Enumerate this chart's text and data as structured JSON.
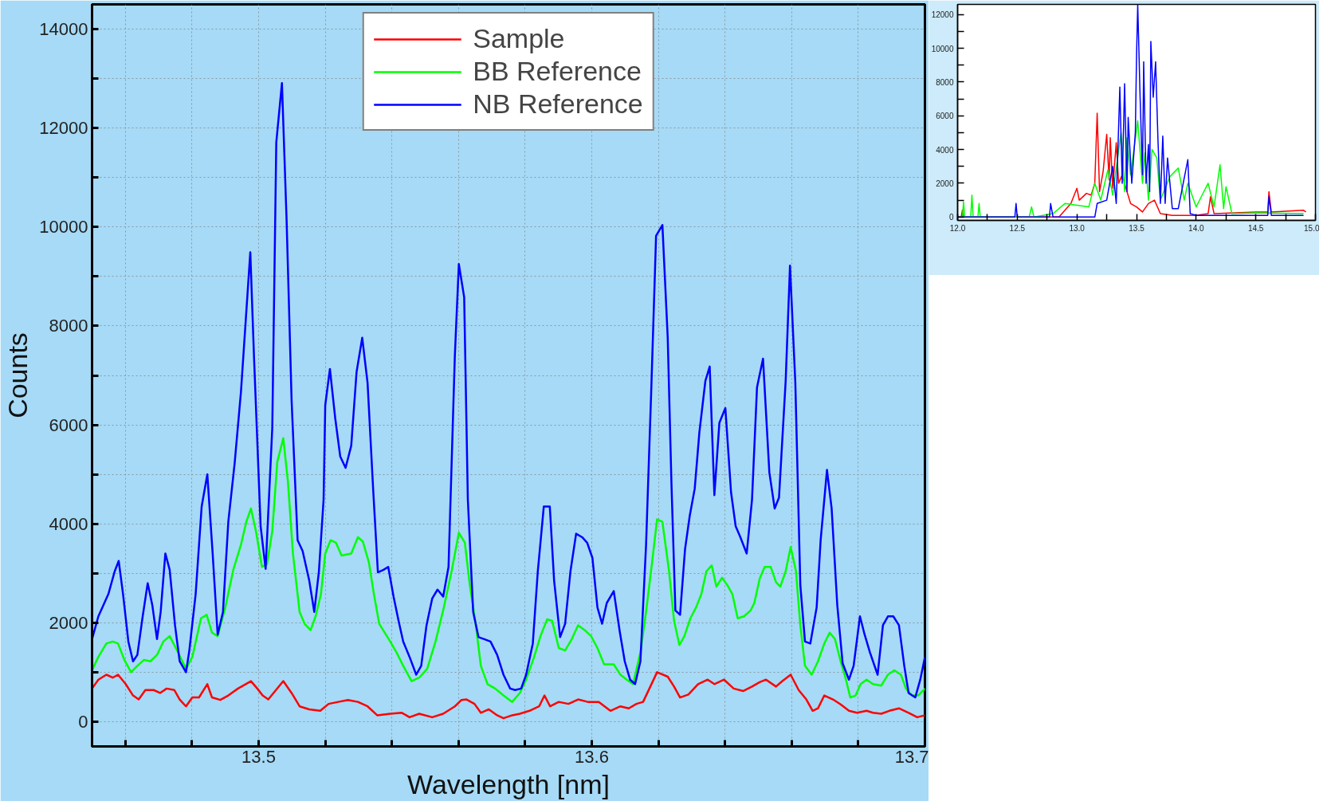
{
  "chart_data": [
    {
      "type": "line",
      "xlabel": "Wavelength [nm]",
      "ylabel": "Counts",
      "xlim": [
        13.45,
        13.7
      ],
      "ylim": [
        -500,
        14500
      ],
      "xticks": [
        {
          "value": 13.46,
          "label": null
        },
        {
          "value": 13.48,
          "label": null
        },
        13.5,
        {
          "value": 13.52,
          "label": null
        },
        {
          "value": 13.54,
          "label": null
        },
        {
          "value": 13.56,
          "label": null
        },
        {
          "value": 13.58,
          "label": null
        },
        13.6,
        {
          "value": 13.62,
          "label": null
        },
        {
          "value": 13.64,
          "label": null
        },
        {
          "value": 13.66,
          "label": null
        },
        {
          "value": 13.68,
          "label": null
        },
        13.7
      ],
      "yticks": [
        0,
        {
          "value": 1000,
          "label": null
        },
        2000,
        {
          "value": 3000,
          "label": null
        },
        4000,
        {
          "value": 5000,
          "label": null
        },
        6000,
        {
          "value": 7000,
          "label": null
        },
        8000,
        {
          "value": 9000,
          "label": null
        },
        10000,
        {
          "value": 11000,
          "label": null
        },
        12000,
        {
          "value": 13000,
          "label": null
        },
        14000
      ],
      "grid": true,
      "legend": "top",
      "series": [
        {
          "name": "Sample",
          "color": "#ff0000",
          "x": [
            13.45,
            13.4519,
            13.4543,
            13.4562,
            13.4578,
            13.4601,
            13.4623,
            13.464,
            13.466,
            13.4685,
            13.4704,
            13.4724,
            13.4747,
            13.4763,
            13.4782,
            13.4801,
            13.4821,
            13.4846,
            13.486,
            13.4885,
            13.4909,
            13.4938,
            13.4977,
            13.4996,
            13.5012,
            13.5029,
            13.5074,
            13.5099,
            13.5123,
            13.5152,
            13.5185,
            13.521,
            13.5239,
            13.5268,
            13.5298,
            13.5327,
            13.5356,
            13.5395,
            13.543,
            13.5453,
            13.5482,
            13.5521,
            13.5554,
            13.5589,
            13.5609,
            13.5624,
            13.5648,
            13.5667,
            13.5691,
            13.5716,
            13.5735,
            13.5761,
            13.5784,
            13.5813,
            13.5842,
            13.5858,
            13.5875,
            13.5901,
            13.593,
            13.5959,
            13.5988,
            13.6021,
            13.6056,
            13.6086,
            13.6111,
            13.6134,
            13.6154,
            13.6173,
            13.6196,
            13.6228,
            13.6247,
            13.6265,
            13.629,
            13.6319,
            13.6348,
            13.6368,
            13.6397,
            13.6426,
            13.6455,
            13.6481,
            13.6504,
            13.6523,
            13.6553,
            13.6572,
            13.6597,
            13.6621,
            13.6644,
            13.6663,
            13.6679,
            13.6698,
            13.6724,
            13.6747,
            13.6772,
            13.6796,
            13.6825,
            13.6844,
            13.6869,
            13.6893,
            13.6922,
            13.6951,
            13.6977,
            13.7
          ],
          "values": [
            670,
            850,
            950,
            890,
            950,
            760,
            530,
            450,
            640,
            640,
            580,
            670,
            640,
            450,
            310,
            490,
            490,
            760,
            490,
            440,
            530,
            670,
            820,
            670,
            530,
            450,
            820,
            580,
            310,
            250,
            220,
            360,
            400,
            440,
            400,
            310,
            130,
            160,
            180,
            90,
            160,
            90,
            160,
            310,
            440,
            450,
            360,
            180,
            250,
            130,
            70,
            130,
            160,
            220,
            310,
            530,
            310,
            400,
            360,
            450,
            400,
            400,
            220,
            310,
            270,
            360,
            400,
            670,
            1000,
            910,
            710,
            490,
            550,
            760,
            850,
            760,
            850,
            670,
            620,
            710,
            800,
            850,
            710,
            820,
            950,
            640,
            450,
            220,
            270,
            530,
            450,
            350,
            220,
            180,
            220,
            180,
            160,
            220,
            270,
            180,
            90,
            130
          ]
        },
        {
          "name": "BB Reference",
          "color": "#00ff00",
          "x": [
            13.45,
            13.4519,
            13.4543,
            13.4562,
            13.4578,
            13.4597,
            13.4617,
            13.4636,
            13.4656,
            13.4675,
            13.4695,
            13.4714,
            13.4733,
            13.4753,
            13.4782,
            13.4801,
            13.4827,
            13.4844,
            13.486,
            13.4877,
            13.49,
            13.4924,
            13.4947,
            13.4963,
            13.4977,
            13.4992,
            13.501,
            13.5025,
            13.5041,
            13.5056,
            13.5074,
            13.5088,
            13.5103,
            13.5123,
            13.5138,
            13.5156,
            13.5171,
            13.5187,
            13.52,
            13.5216,
            13.5232,
            13.5249,
            13.5278,
            13.5298,
            13.5313,
            13.5331,
            13.5346,
            13.5362,
            13.5395,
            13.5414,
            13.5434,
            13.5459,
            13.5482,
            13.5506,
            13.5531,
            13.5556,
            13.558,
            13.5601,
            13.5619,
            13.5634,
            13.5652,
            13.5667,
            13.5687,
            13.571,
            13.5735,
            13.5761,
            13.5784,
            13.5803,
            13.5827,
            13.5846,
            13.5866,
            13.5881,
            13.5901,
            13.592,
            13.594,
            13.5959,
            13.5979,
            13.5998,
            13.6017,
            13.6037,
            13.6066,
            13.6086,
            13.6105,
            13.6124,
            13.6146,
            13.6163,
            13.6181,
            13.6196,
            13.6212,
            13.6232,
            13.6247,
            13.6263,
            13.6278,
            13.6296,
            13.6313,
            13.6329,
            13.6344,
            13.636,
            13.6374,
            13.6391,
            13.6407,
            13.6422,
            13.6438,
            13.6457,
            13.6477,
            13.6488,
            13.6504,
            13.6519,
            13.6537,
            13.6553,
            13.6566,
            13.6582,
            13.6597,
            13.6613,
            13.6626,
            13.664,
            13.666,
            13.6679,
            13.6698,
            13.6714,
            13.673,
            13.6747,
            13.6763,
            13.6776,
            13.6792,
            13.6807,
            13.6825,
            13.6844,
            13.6869,
            13.6889,
            13.6908,
            13.6928,
            13.6943,
            13.6961,
            13.698,
            13.7
          ],
          "values": [
            1040,
            1310,
            1580,
            1620,
            1580,
            1250,
            1000,
            1130,
            1250,
            1220,
            1350,
            1620,
            1730,
            1470,
            1070,
            1310,
            2090,
            2160,
            1800,
            1730,
            2310,
            3070,
            3580,
            4040,
            4310,
            3850,
            3130,
            3180,
            3850,
            5250,
            5730,
            4850,
            3400,
            2220,
            1980,
            1850,
            2130,
            2580,
            3400,
            3670,
            3620,
            3360,
            3400,
            3730,
            3640,
            3220,
            2580,
            1980,
            1620,
            1400,
            1130,
            820,
            890,
            1070,
            1620,
            2310,
            3070,
            3820,
            3620,
            2760,
            1950,
            1130,
            760,
            670,
            530,
            400,
            580,
            850,
            1310,
            1730,
            2070,
            2040,
            1490,
            1440,
            1670,
            1950,
            1850,
            1730,
            1490,
            1160,
            1160,
            950,
            850,
            760,
            1400,
            2220,
            3220,
            4090,
            4040,
            3040,
            2040,
            1550,
            1730,
            2090,
            2310,
            2580,
            3040,
            3160,
            2730,
            2910,
            2760,
            2580,
            2090,
            2130,
            2250,
            2400,
            2890,
            3130,
            3130,
            2820,
            2730,
            3040,
            3530,
            3040,
            1950,
            1130,
            950,
            1220,
            1580,
            1800,
            1670,
            1220,
            850,
            490,
            530,
            760,
            850,
            760,
            730,
            950,
            1040,
            950,
            670,
            530,
            530,
            670
          ]
        },
        {
          "name": "NB Reference",
          "color": "#0000ff",
          "x": [
            13.45,
            13.4519,
            13.4549,
            13.4568,
            13.458,
            13.4593,
            13.4609,
            13.4623,
            13.4636,
            13.4652,
            13.4667,
            13.4681,
            13.4695,
            13.4706,
            13.472,
            13.4733,
            13.4749,
            13.4763,
            13.4782,
            13.4792,
            13.4811,
            13.4829,
            13.4846,
            13.4862,
            13.4877,
            13.4893,
            13.4909,
            13.4928,
            13.4947,
            13.4975,
            13.4986,
            13.5006,
            13.5021,
            13.5041,
            13.5053,
            13.507,
            13.5084,
            13.5099,
            13.5117,
            13.5132,
            13.5152,
            13.5167,
            13.5181,
            13.5195,
            13.52,
            13.5214,
            13.523,
            13.5245,
            13.5261,
            13.5278,
            13.5294,
            13.5311,
            13.5327,
            13.5344,
            13.5358,
            13.5375,
            13.5389,
            13.5405,
            13.542,
            13.5434,
            13.5453,
            13.5473,
            13.5488,
            13.5504,
            13.5521,
            13.5537,
            13.5554,
            13.557,
            13.5589,
            13.5601,
            13.5617,
            13.5628,
            13.5644,
            13.566,
            13.5677,
            13.5696,
            13.5716,
            13.5735,
            13.5755,
            13.577,
            13.5788,
            13.5803,
            13.5823,
            13.5838,
            13.5856,
            13.5874,
            13.5887,
            13.5905,
            13.592,
            13.5936,
            13.5953,
            13.5971,
            13.5986,
            13.6002,
            13.6017,
            13.6031,
            13.6045,
            13.6066,
            13.6084,
            13.6099,
            13.6115,
            13.613,
            13.6146,
            13.6163,
            13.6179,
            13.6193,
            13.6212,
            13.6228,
            13.6239,
            13.6251,
            13.6265,
            13.628,
            13.6294,
            13.6309,
            13.6323,
            13.6341,
            13.6354,
            13.6368,
            13.6383,
            13.6401,
            13.6418,
            13.6432,
            13.6446,
            13.6465,
            13.6481,
            13.6496,
            13.6514,
            13.6533,
            13.6549,
            13.6562,
            13.6582,
            13.6595,
            13.6611,
            13.6626,
            13.664,
            13.6656,
            13.6675,
            13.6687,
            13.6706,
            13.672,
            13.6737,
            13.6753,
            13.6772,
            13.6786,
            13.6805,
            13.6819,
            13.6835,
            13.6858,
            13.6874,
            13.6889,
            13.6905,
            13.6922,
            13.6938,
            13.6951,
            13.6971,
            13.6986,
            13.7
          ],
          "values": [
            1670,
            2130,
            2580,
            3040,
            3250,
            2580,
            1620,
            1220,
            1350,
            2130,
            2800,
            2350,
            1670,
            2220,
            3400,
            3070,
            1950,
            1220,
            1000,
            1440,
            2580,
            4350,
            5000,
            3400,
            1760,
            2220,
            4040,
            5220,
            6670,
            9490,
            7400,
            3950,
            3090,
            5940,
            11710,
            12910,
            10130,
            6490,
            3670,
            3450,
            2850,
            2220,
            3040,
            4490,
            6400,
            7130,
            6130,
            5360,
            5130,
            5580,
            7070,
            7760,
            6850,
            4670,
            3020,
            3070,
            3130,
            2530,
            2040,
            1620,
            1310,
            950,
            1130,
            1950,
            2490,
            2670,
            2530,
            3130,
            7400,
            9250,
            8580,
            4490,
            2220,
            1710,
            1670,
            1620,
            1350,
            950,
            670,
            640,
            670,
            950,
            1580,
            3040,
            4350,
            4350,
            2850,
            1710,
            1980,
            3040,
            3800,
            3730,
            3620,
            3310,
            2310,
            1980,
            2400,
            2640,
            1820,
            1220,
            850,
            760,
            1220,
            3580,
            6800,
            9820,
            10040,
            7760,
            4850,
            2250,
            2160,
            3490,
            4160,
            4710,
            5850,
            6890,
            7180,
            4580,
            6040,
            6340,
            4640,
            3950,
            3730,
            3400,
            4490,
            6760,
            7340,
            5040,
            4310,
            4530,
            6890,
            9220,
            6850,
            2760,
            1620,
            1580,
            2310,
            3670,
            5090,
            4310,
            2350,
            1180,
            850,
            1130,
            2130,
            1760,
            1400,
            950,
            1950,
            2130,
            2130,
            1950,
            1130,
            580,
            490,
            850,
            1310
          ]
        }
      ]
    },
    {
      "type": "line",
      "xlim": [
        12.0,
        15.0
      ],
      "ylim": [
        -200,
        12600
      ],
      "xticks": [
        {
          "value": 12,
          "label": "12.0"
        },
        {
          "value": 12.25,
          "label": null
        },
        12.5,
        {
          "value": 12.75,
          "label": null
        },
        {
          "value": 13,
          "label": "13.0"
        },
        {
          "value": 13.25,
          "label": null
        },
        13.5,
        {
          "value": 13.75,
          "label": null
        },
        {
          "value": 14,
          "label": "14.0"
        },
        {
          "value": 14.25,
          "label": null
        },
        14.5,
        {
          "value": 14.75,
          "label": null
        },
        {
          "value": 15,
          "label": "15.0"
        }
      ],
      "yticks": [
        0,
        {
          "value": 1000,
          "label": null
        },
        2000,
        {
          "value": 3000,
          "label": null
        },
        4000,
        {
          "value": 5000,
          "label": null
        },
        6000,
        {
          "value": 7000,
          "label": null
        },
        8000,
        {
          "value": 9000,
          "label": null
        },
        10000,
        {
          "value": 11000,
          "label": null
        },
        12000
      ],
      "series": [
        {
          "color": "#ff0000",
          "x": [
            12.0,
            12.03,
            12.04,
            12.05,
            12.85,
            12.9,
            12.95,
            13.0,
            13.02,
            13.08,
            13.12,
            13.15,
            13.17,
            13.19,
            13.22,
            13.25,
            13.27,
            13.28,
            13.3,
            13.33,
            13.35,
            13.38,
            13.42,
            13.45,
            13.5,
            13.55,
            13.6,
            13.65,
            13.7,
            13.8,
            14.0,
            14.1,
            14.12,
            14.15,
            14.5,
            14.6,
            14.61,
            14.63,
            14.9,
            14.92
          ],
          "values": [
            0,
            0,
            400,
            0,
            0,
            400,
            800,
            1700,
            1000,
            1400,
            1300,
            2000,
            6150,
            1500,
            2700,
            4900,
            2200,
            4700,
            1700,
            4400,
            2000,
            2500,
            1500,
            800,
            600,
            300,
            800,
            1000,
            200,
            100,
            100,
            200,
            1200,
            200,
            300,
            300,
            1500,
            300,
            400,
            300
          ]
        },
        {
          "color": "#00ff00",
          "x": [
            12.0,
            12.04,
            12.05,
            12.06,
            12.11,
            12.12,
            12.13,
            12.17,
            12.18,
            12.19,
            12.6,
            12.62,
            12.64,
            12.8,
            12.9,
            13.0,
            13.1,
            13.15,
            13.2,
            13.26,
            13.3,
            13.37,
            13.4,
            13.42,
            13.45,
            13.51,
            13.55,
            13.57,
            13.6,
            13.63,
            13.67,
            13.7,
            13.78,
            13.85,
            13.9,
            13.93,
            14.0,
            14.05,
            14.1,
            14.15,
            14.2,
            14.23,
            14.25,
            14.3,
            14.5,
            14.9
          ],
          "values": [
            0,
            0,
            900,
            0,
            0,
            1300,
            0,
            0,
            800,
            0,
            0,
            600,
            0,
            200,
            800,
            700,
            600,
            2000,
            1000,
            2800,
            1300,
            5000,
            1500,
            4700,
            2500,
            5700,
            2000,
            3800,
            1000,
            4000,
            3500,
            1000,
            2400,
            2900,
            1000,
            2000,
            600,
            1300,
            2000,
            600,
            3100,
            500,
            1800,
            200,
            250,
            200
          ]
        },
        {
          "color": "#0000ff",
          "x": [
            12.0,
            12.48,
            12.49,
            12.5,
            12.77,
            12.78,
            12.8,
            13.15,
            13.17,
            13.25,
            13.3,
            13.33,
            13.36,
            13.38,
            13.4,
            13.42,
            13.43,
            13.46,
            13.49,
            13.5,
            13.51,
            13.53,
            13.55,
            13.56,
            13.58,
            13.6,
            13.61,
            13.62,
            13.64,
            13.66,
            13.68,
            13.7,
            13.72,
            13.74,
            13.76,
            13.8,
            13.85,
            13.93,
            13.95,
            14.0,
            14.5,
            14.6,
            14.61,
            14.63,
            14.9
          ],
          "values": [
            0,
            0,
            800,
            0,
            0,
            800,
            0,
            0,
            800,
            1000,
            3000,
            800,
            7700,
            2000,
            7900,
            1500,
            5900,
            2000,
            5000,
            9500,
            12600,
            7100,
            2500,
            9200,
            2000,
            4300,
            1500,
            10400,
            7100,
            9200,
            4500,
            800,
            4800,
            800,
            3500,
            500,
            500,
            3400,
            200,
            100,
            100,
            100,
            1200,
            100,
            100
          ]
        }
      ]
    }
  ]
}
